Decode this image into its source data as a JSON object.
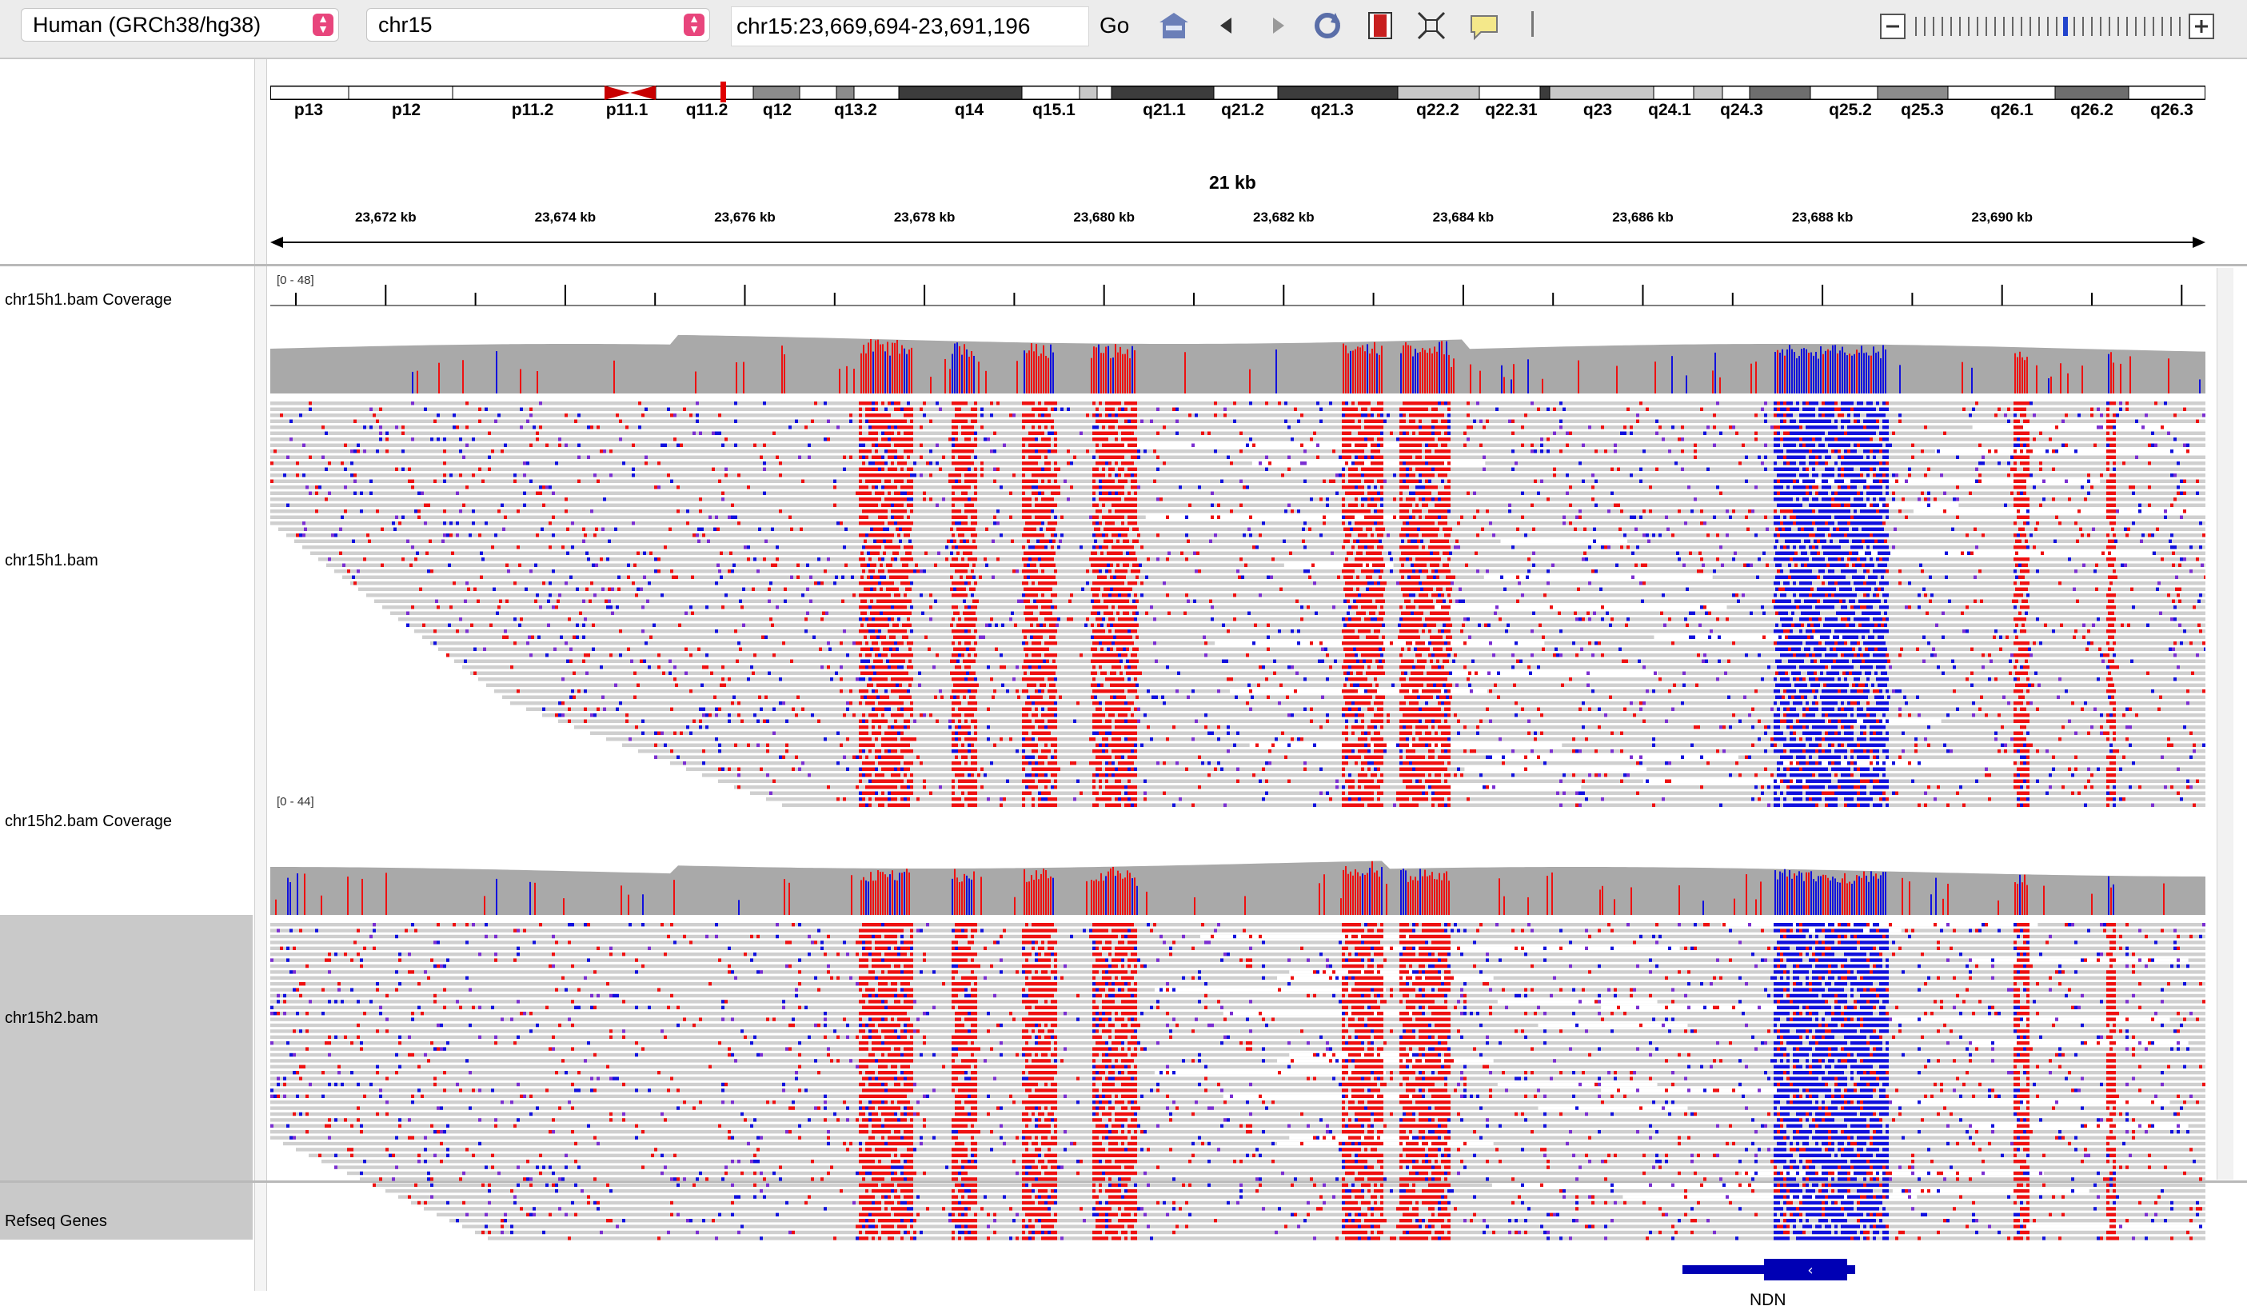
{
  "toolbar": {
    "genome": "Human (GRCh38/hg38)",
    "chromosome": "chr15",
    "locus": "chr15:23,669,694-23,691,196",
    "go_label": "Go",
    "icons": [
      "home-icon",
      "back-icon",
      "forward-icon",
      "refresh-icon",
      "region-icon",
      "fit-icon",
      "popup-icon"
    ]
  },
  "ideogram": {
    "bands": [
      "p13",
      "p12",
      "p11.2",
      "p11.1",
      "q11.2",
      "q12",
      "q13.2",
      "q14",
      "q15.1",
      "q21.1",
      "q21.2",
      "q21.3",
      "q22.2",
      "q22.31",
      "q23",
      "q24.1",
      "q24.3",
      "q25.2",
      "q25.3",
      "q26.1",
      "q26.2",
      "q26.3"
    ]
  },
  "ruler": {
    "span": "21 kb",
    "ticks": [
      "23,672 kb",
      "23,674 kb",
      "23,676 kb",
      "23,678 kb",
      "23,680 kb",
      "23,682 kb",
      "23,684 kb",
      "23,686 kb",
      "23,688 kb",
      "23,690 kb"
    ]
  },
  "tracks": {
    "h1_coverage": {
      "name": "chr15h1.bam Coverage",
      "range": "[0 - 48]"
    },
    "h1_alignment": {
      "name": "chr15h1.bam"
    },
    "h2_coverage": {
      "name": "chr15h2.bam Coverage",
      "range": "[0 - 44]"
    },
    "h2_alignment": {
      "name": "chr15h2.bam"
    },
    "refseq": {
      "name": "Refseq Genes",
      "gene": "NDN",
      "strand": "minus"
    }
  },
  "colors": {
    "mismatch_red": "#ee1111",
    "mismatch_blue": "#1111dd",
    "insertion_purple": "#7b2fd1",
    "read_gray": "#c8c8c8",
    "coverage_gray": "#a8a8a8",
    "gene_blue": "#0000b4"
  }
}
